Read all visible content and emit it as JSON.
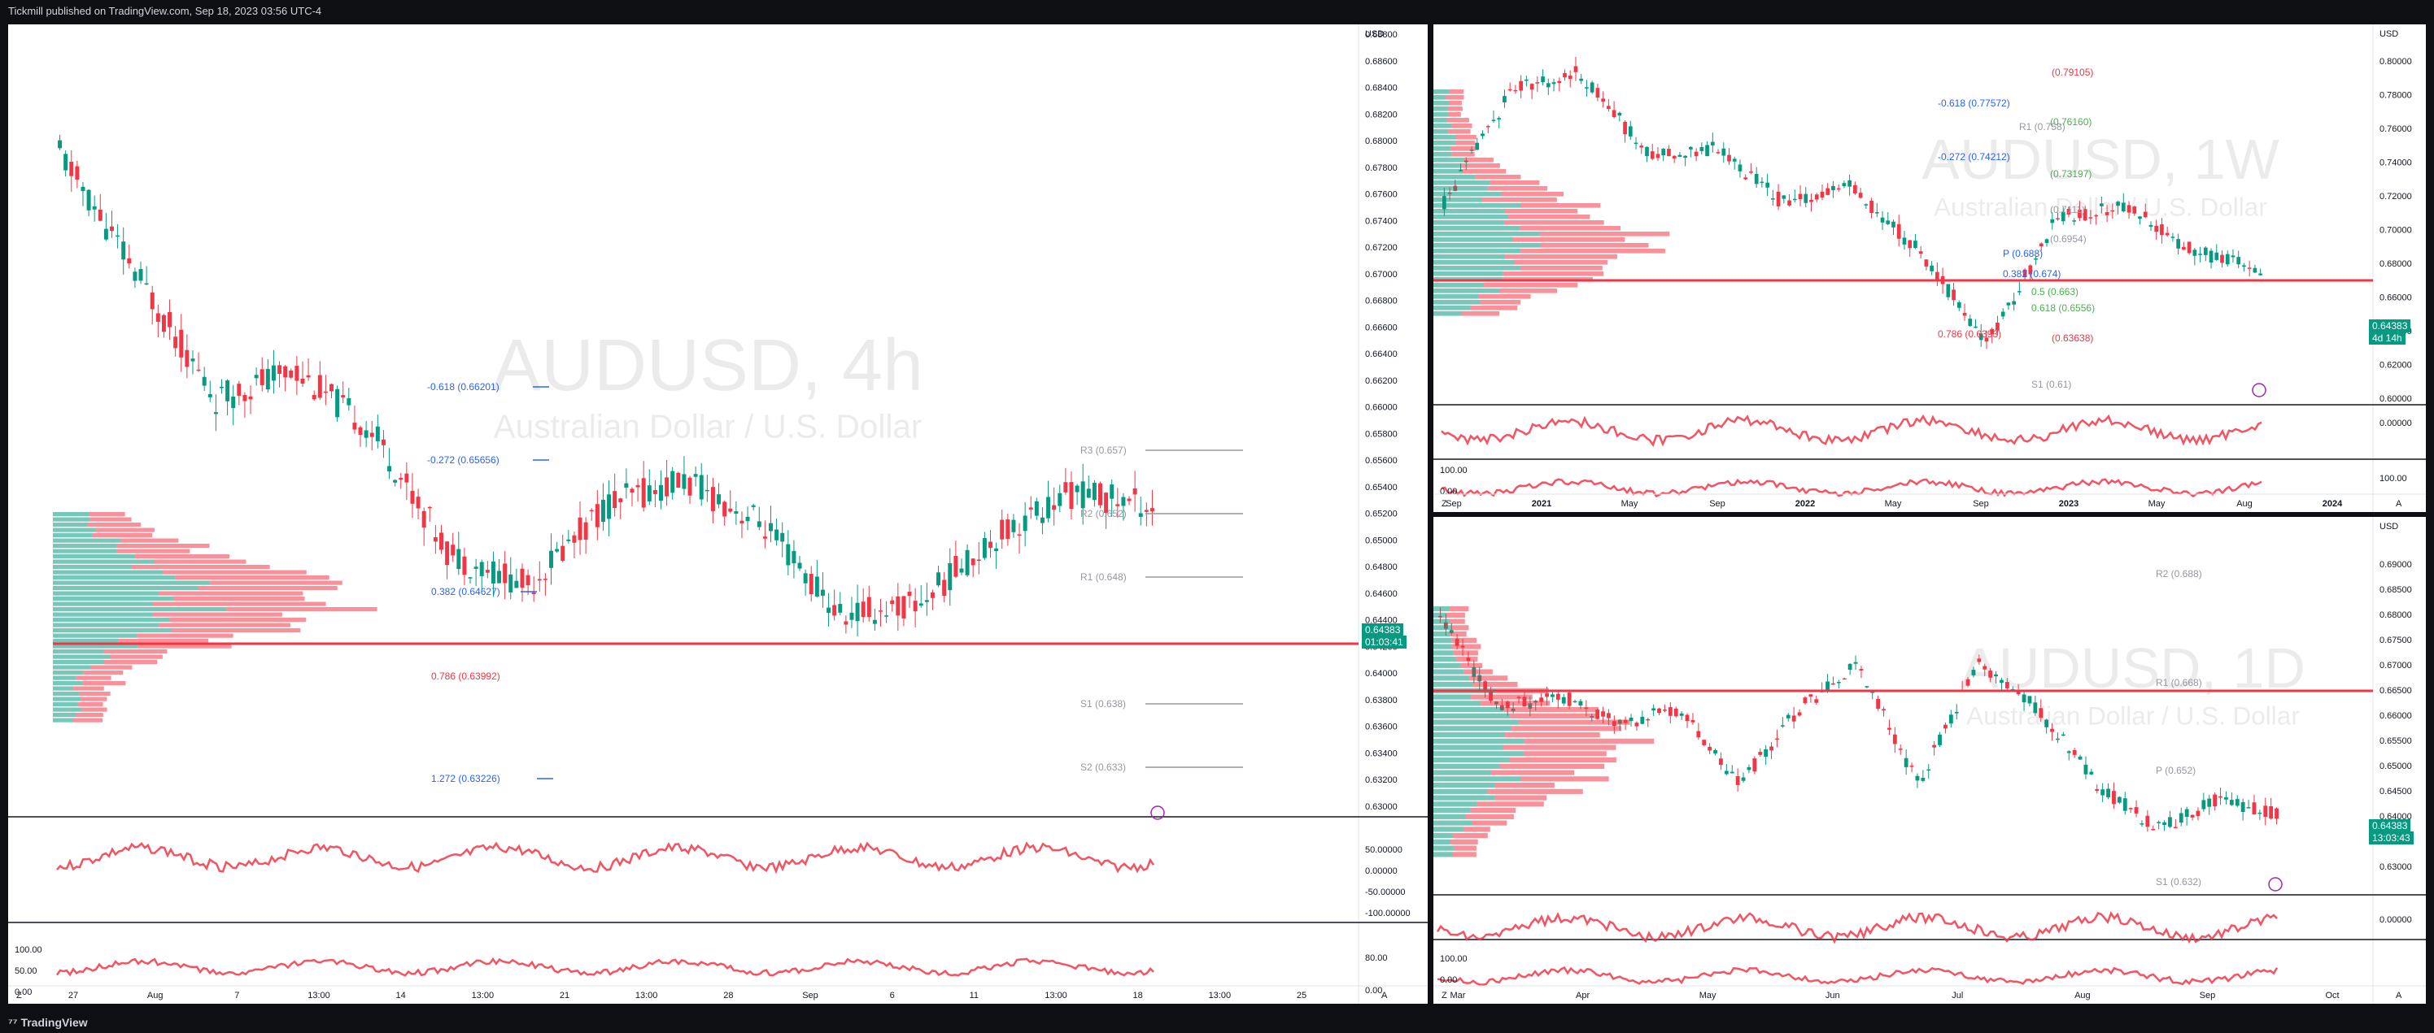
{
  "header": {
    "published_text": "Tickmill published on TradingView.com, Sep 18, 2023 03:56 UTC-4"
  },
  "footer": {
    "brand": "TradingView"
  },
  "colors": {
    "up": "#089981",
    "down": "#f23645",
    "blue_label": "#2962ff",
    "green_label": "#4caf50",
    "red_label": "#f23645",
    "gray_label": "#9598a1",
    "magenta": "#e040fb",
    "orange": "#ff9800"
  },
  "panels": {
    "left": {
      "symbol": "AUDUSD, 4h",
      "description": "Australian Dollar / U.S. Dollar",
      "currency": "USD",
      "price_ticks": [
        "0.68800",
        "0.68600",
        "0.68400",
        "0.68200",
        "0.68000",
        "0.67800",
        "0.67600",
        "0.67400",
        "0.67200",
        "0.67000",
        "0.66800",
        "0.66600",
        "0.66400",
        "0.66200",
        "0.66000",
        "0.65800",
        "0.65600",
        "0.65400",
        "0.65200",
        "0.65000",
        "0.64800",
        "0.64600",
        "0.64400",
        "0.64200",
        "0.64000",
        "0.63800",
        "0.63600",
        "0.63400",
        "0.63200",
        "0.63000"
      ],
      "last_price": "0.64383",
      "countdown": "01:03:41",
      "levels": [
        {
          "text": "-0.618 (0.66201)",
          "color": "blue"
        },
        {
          "text": "-0.272 (0.65656)",
          "color": "blue"
        },
        {
          "text": "0.382 (0.64627)",
          "color": "blue"
        },
        {
          "text": "0.786 (0.63992)",
          "color": "red"
        },
        {
          "text": "1.272 (0.63226)",
          "color": "blue"
        },
        {
          "text": "R3 (0.657)",
          "color": "gray"
        },
        {
          "text": "R2 (0.652)",
          "color": "gray"
        },
        {
          "text": "R1 (0.648)",
          "color": "gray"
        },
        {
          "text": "S1 (0.638)",
          "color": "gray"
        },
        {
          "text": "S2 (0.633)",
          "color": "gray"
        }
      ],
      "osc1_ticks": [
        "50.00000",
        "0.00000",
        "-50.00000",
        "-100.00000"
      ],
      "osc2_ticks": [
        "100.00",
        "50.00",
        "0.00"
      ],
      "osc2_right_ticks": [
        "80.00",
        "0.00"
      ],
      "time_ticks": [
        "27",
        "Aug",
        "7",
        "13:00",
        "14",
        "13:00",
        "21",
        "13:00",
        "28",
        "Sep",
        "6",
        "11",
        "13:00",
        "18",
        "13:00",
        "25"
      ],
      "corner_z": "Z",
      "corner_a": "A"
    },
    "top_right": {
      "symbol": "AUDUSD, 1W",
      "description": "Australian Dollar / U.S. Dollar",
      "currency": "USD",
      "price_ticks": [
        "0.80000",
        "0.78000",
        "0.76000",
        "0.74000",
        "0.72000",
        "0.70000",
        "0.68000",
        "0.66000",
        "0.64000",
        "0.62000",
        "0.60000"
      ],
      "last_price": "0.64383",
      "countdown": "4d 14h",
      "levels": [
        {
          "text": "(0.79105)",
          "color": "red"
        },
        {
          "text": "-0.618 (0.77572)",
          "color": "blue"
        },
        {
          "text": "R1 (0.758)",
          "color": "gray"
        },
        {
          "text": "(0.76160)",
          "color": "green"
        },
        {
          "text": "-0.272 (0.74212)",
          "color": "blue"
        },
        {
          "text": "(0.73197)",
          "color": "green"
        },
        {
          "text": "(0.7111)",
          "color": "gray"
        },
        {
          "text": "(0.6954)",
          "color": "gray"
        },
        {
          "text": "P (0.688)",
          "color": "blue"
        },
        {
          "text": "0.382 (0.674)",
          "color": "blue"
        },
        {
          "text": "0.5 (0.663)",
          "color": "green"
        },
        {
          "text": "0.618 (0.6556)",
          "color": "green"
        },
        {
          "text": "0.786 (0.6393)",
          "color": "red"
        },
        {
          "text": "(0.63638)",
          "color": "red"
        },
        {
          "text": "S1 (0.61)",
          "color": "gray"
        }
      ],
      "osc1_ticks": [
        "0.00000"
      ],
      "osc2_ticks": [
        "100.00",
        "0.00"
      ],
      "osc2_right_ticks": [
        "100.00"
      ],
      "time_ticks": [
        "Sep",
        "2021",
        "May",
        "Sep",
        "2022",
        "May",
        "Sep",
        "2023",
        "May",
        "Aug",
        "2024"
      ],
      "corner_z": "Z",
      "corner_a": "A"
    },
    "bottom_right": {
      "symbol": "AUDUSD, 1D",
      "description": "Australian Dollar / U.S. Dollar",
      "currency": "USD",
      "price_ticks": [
        "0.69000",
        "0.68500",
        "0.68000",
        "0.67500",
        "0.67000",
        "0.66500",
        "0.66000",
        "0.65500",
        "0.65000",
        "0.64500",
        "0.64000",
        "0.63500",
        "0.63000"
      ],
      "last_price": "0.64383",
      "countdown": "13:03:43",
      "levels": [
        {
          "text": "R2 (0.688)",
          "color": "gray"
        },
        {
          "text": "R1 (0.668)",
          "color": "gray"
        },
        {
          "text": "P (0.652)",
          "color": "gray"
        },
        {
          "text": "S1 (0.632)",
          "color": "gray"
        }
      ],
      "osc1_ticks": [
        "0.00000"
      ],
      "osc2_ticks": [
        "100.00",
        "0.00"
      ],
      "time_ticks": [
        "Mar",
        "Apr",
        "May",
        "Jun",
        "Jul",
        "Aug",
        "Sep",
        "Oct"
      ],
      "corner_z": "Z",
      "corner_a": "A"
    }
  }
}
